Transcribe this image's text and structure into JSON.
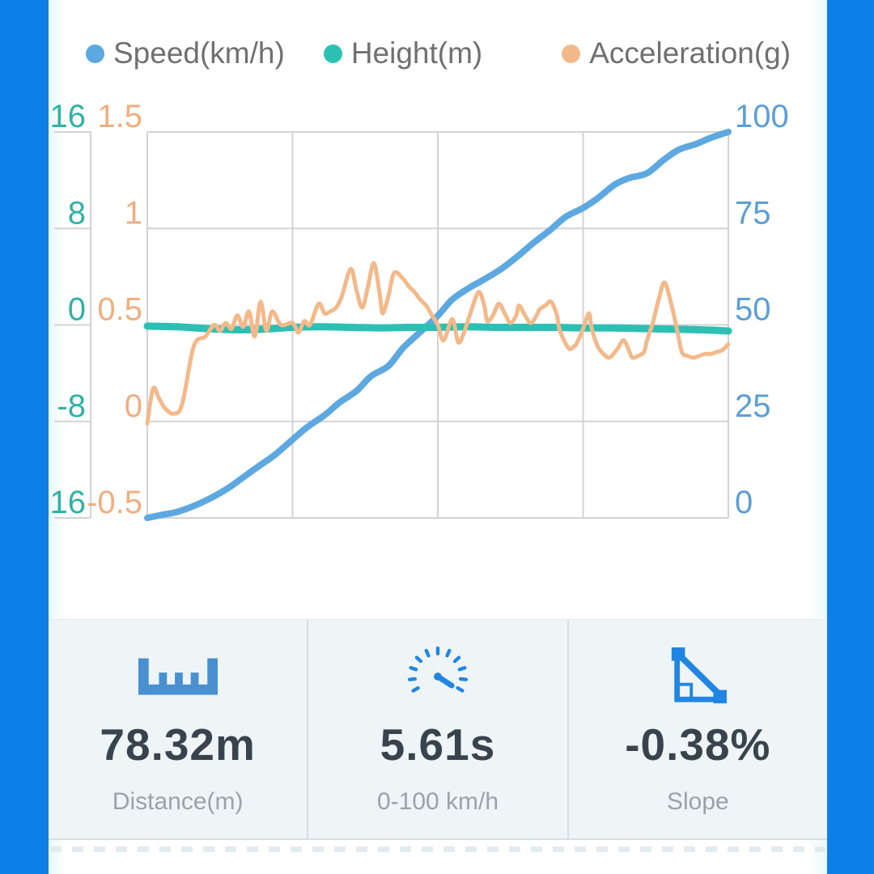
{
  "colors": {
    "frame_blue": "#0d80e8",
    "grid": "#d3d3d3",
    "legend_text": "#707070",
    "axis_label_height": "#2fb2a4",
    "axis_label_acceleration": "#f0ae7e",
    "axis_label_speed": "#5b9fd6",
    "stat_value": "#39434e",
    "stat_label": "#9aa2a9",
    "icon_blue": "#2186e3",
    "icon_ruler_blue": "#4a90d0",
    "card_background": "#eff5f7",
    "card_divider": "#d8dee1"
  },
  "legend": {
    "items": [
      {
        "label": "Speed(km/h)",
        "series": "speed"
      },
      {
        "label": "Height(m)",
        "series": "height"
      },
      {
        "label": "Acceleration(g)",
        "series": "acceleration"
      }
    ]
  },
  "stats": {
    "cards": [
      {
        "icon": "ruler-icon",
        "value": "78.32m",
        "label": "Distance(m)"
      },
      {
        "icon": "speedometer-icon",
        "value": "5.61s",
        "label": "0-100 km/h"
      },
      {
        "icon": "slope-icon",
        "value": "-0.38%",
        "label": "Slope"
      }
    ]
  },
  "chart_data": {
    "type": "line",
    "title": "",
    "xlabel": "",
    "x_axis": {
      "tick_labels": [],
      "range_pct": [
        0,
        100
      ],
      "grid": true,
      "columns": 4
    },
    "y_axes": [
      {
        "id": "height",
        "title": "Height(m)",
        "side": "left-outer",
        "ticks": [
          "16",
          "8",
          "0",
          "-8",
          "-16"
        ],
        "range": [
          16,
          -16
        ]
      },
      {
        "id": "acceleration",
        "title": "Acceleration(g)",
        "side": "left-inner",
        "ticks": [
          "1.5",
          "1",
          "0.5",
          "0",
          "-0.5"
        ],
        "range": [
          1.5,
          -0.5
        ]
      },
      {
        "id": "speed",
        "title": "Speed(km/h)",
        "side": "right",
        "ticks": [
          "100",
          "75",
          "50",
          "25",
          "0"
        ],
        "range": [
          100,
          0
        ]
      }
    ],
    "series": [
      {
        "id": "speed",
        "name": "Speed(km/h)",
        "axis": "speed",
        "color": "#5da8e1",
        "points": [
          [
            0,
            0
          ],
          [
            2.5,
            0.8
          ],
          [
            5,
            1.5
          ],
          [
            8,
            3.1
          ],
          [
            11,
            5.2
          ],
          [
            14,
            7.8
          ],
          [
            16.5,
            10.5
          ],
          [
            19,
            13.2
          ],
          [
            22,
            16.4
          ],
          [
            25,
            20.3
          ],
          [
            27.5,
            23.5
          ],
          [
            30.5,
            26.6
          ],
          [
            33,
            29.8
          ],
          [
            36,
            32.9
          ],
          [
            38.5,
            36.7
          ],
          [
            41.5,
            39.4
          ],
          [
            44,
            44
          ],
          [
            47,
            48.2
          ],
          [
            50,
            52.4
          ],
          [
            52.5,
            56.6
          ],
          [
            55.5,
            59.7
          ],
          [
            58,
            61.8
          ],
          [
            61,
            64.6
          ],
          [
            64,
            68.1
          ],
          [
            66.5,
            71.3
          ],
          [
            69.5,
            74.8
          ],
          [
            72,
            78
          ],
          [
            75,
            80.3
          ],
          [
            77.5,
            82.8
          ],
          [
            80.5,
            86.4
          ],
          [
            83,
            88.1
          ],
          [
            86,
            89.3
          ],
          [
            89,
            92.9
          ],
          [
            91.5,
            95.4
          ],
          [
            94.5,
            96.9
          ],
          [
            97,
            98.5
          ],
          [
            100,
            100
          ]
        ]
      },
      {
        "id": "height",
        "name": "Height(m)",
        "axis": "height",
        "color": "#2cc0b4",
        "points": [
          [
            0,
            -0.1
          ],
          [
            5,
            -0.15
          ],
          [
            10,
            -0.3
          ],
          [
            15,
            -0.4
          ],
          [
            20,
            -0.35
          ],
          [
            25,
            -0.2
          ],
          [
            30,
            -0.15
          ],
          [
            35,
            -0.2
          ],
          [
            40,
            -0.25
          ],
          [
            45,
            -0.2
          ],
          [
            50,
            -0.2
          ],
          [
            55,
            -0.15
          ],
          [
            60,
            -0.2
          ],
          [
            65,
            -0.2
          ],
          [
            70,
            -0.2
          ],
          [
            75,
            -0.25
          ],
          [
            80,
            -0.25
          ],
          [
            85,
            -0.3
          ],
          [
            90,
            -0.35
          ],
          [
            95,
            -0.4
          ],
          [
            100,
            -0.5
          ]
        ]
      },
      {
        "id": "acceleration",
        "name": "Acceleration(g)",
        "axis": "acceleration",
        "color": "#f3b98a",
        "points": [
          [
            0,
            -0.01
          ],
          [
            1,
            0.17
          ],
          [
            2,
            0.12
          ],
          [
            3,
            0.07
          ],
          [
            4.5,
            0.04
          ],
          [
            6,
            0.09
          ],
          [
            8,
            0.39
          ],
          [
            10,
            0.44
          ],
          [
            11.5,
            0.5
          ],
          [
            12.5,
            0.47
          ],
          [
            13.5,
            0.51
          ],
          [
            14.5,
            0.48
          ],
          [
            15.5,
            0.55
          ],
          [
            16.5,
            0.49
          ],
          [
            17.5,
            0.57
          ],
          [
            18.5,
            0.44
          ],
          [
            19.5,
            0.62
          ],
          [
            20.5,
            0.47
          ],
          [
            21.5,
            0.57
          ],
          [
            23,
            0.5
          ],
          [
            25,
            0.51
          ],
          [
            26,
            0.46
          ],
          [
            27,
            0.52
          ],
          [
            28,
            0.5
          ],
          [
            29.5,
            0.61
          ],
          [
            30.5,
            0.56
          ],
          [
            31.5,
            0.57
          ],
          [
            32.5,
            0.59
          ],
          [
            33.5,
            0.65
          ],
          [
            35,
            0.79
          ],
          [
            36,
            0.68
          ],
          [
            37,
            0.59
          ],
          [
            38,
            0.7
          ],
          [
            39,
            0.82
          ],
          [
            40,
            0.66
          ],
          [
            40.5,
            0.56
          ],
          [
            41.5,
            0.65
          ],
          [
            42.5,
            0.77
          ],
          [
            44,
            0.74
          ],
          [
            45,
            0.7
          ],
          [
            46,
            0.67
          ],
          [
            47,
            0.63
          ],
          [
            48,
            0.6
          ],
          [
            49,
            0.55
          ],
          [
            50,
            0.5
          ],
          [
            51,
            0.42
          ],
          [
            52.5,
            0.53
          ],
          [
            53.5,
            0.41
          ],
          [
            54.5,
            0.46
          ],
          [
            55.5,
            0.55
          ],
          [
            57,
            0.67
          ],
          [
            58,
            0.6
          ],
          [
            58.5,
            0.52
          ],
          [
            59.5,
            0.55
          ],
          [
            60.5,
            0.61
          ],
          [
            61.5,
            0.56
          ],
          [
            62.5,
            0.51
          ],
          [
            63.5,
            0.55
          ],
          [
            64,
            0.6
          ],
          [
            65,
            0.55
          ],
          [
            66,
            0.51
          ],
          [
            67,
            0.55
          ],
          [
            67.5,
            0.58
          ],
          [
            68.5,
            0.6
          ],
          [
            69.5,
            0.62
          ],
          [
            70.5,
            0.55
          ],
          [
            71,
            0.47
          ],
          [
            72.5,
            0.38
          ],
          [
            73.5,
            0.39
          ],
          [
            74,
            0.41
          ],
          [
            75,
            0.48
          ],
          [
            76,
            0.56
          ],
          [
            76.5,
            0.48
          ],
          [
            77.5,
            0.39
          ],
          [
            78.5,
            0.35
          ],
          [
            79.5,
            0.33
          ],
          [
            80.5,
            0.36
          ],
          [
            81,
            0.38
          ],
          [
            82,
            0.42
          ],
          [
            83,
            0.36
          ],
          [
            83.5,
            0.33
          ],
          [
            84.5,
            0.34
          ],
          [
            85.5,
            0.36
          ],
          [
            86,
            0.42
          ],
          [
            87,
            0.51
          ],
          [
            88,
            0.63
          ],
          [
            89,
            0.72
          ],
          [
            90,
            0.63
          ],
          [
            91,
            0.5
          ],
          [
            92,
            0.36
          ],
          [
            93,
            0.34
          ],
          [
            94,
            0.33
          ],
          [
            95,
            0.34
          ],
          [
            96,
            0.35
          ],
          [
            97,
            0.35
          ],
          [
            98,
            0.36
          ],
          [
            99,
            0.37
          ],
          [
            100,
            0.4
          ]
        ]
      }
    ],
    "legend_position": "top",
    "grid": true
  }
}
